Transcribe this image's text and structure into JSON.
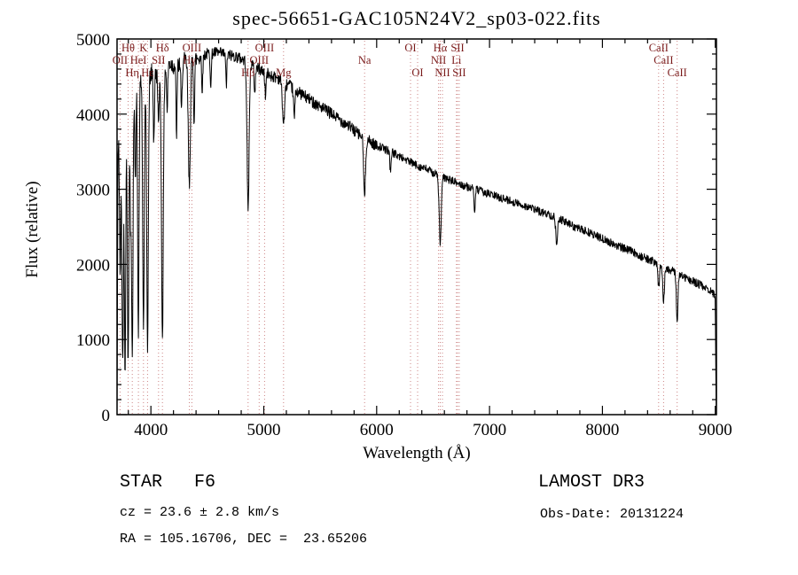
{
  "chart_data": {
    "type": "line",
    "title": "spec-56651-GAC105N24V2_sp03-022.fits",
    "xlabel": "Wavelength (Å)",
    "ylabel": "Flux (relative)",
    "xlim": [
      3700,
      9010
    ],
    "ylim": [
      0,
      5000
    ],
    "xticks": [
      4000,
      5000,
      6000,
      7000,
      8000,
      9000
    ],
    "yticks": [
      0,
      1000,
      2000,
      3000,
      4000,
      5000
    ],
    "grid": false,
    "legend": "none",
    "line_color": "#000000",
    "marker_line_color": "#cc8484",
    "marker_label_color": "#7a1a1a",
    "spectral_lines": [
      {
        "label": "OII",
        "wavelength": 3727,
        "row": 1
      },
      {
        "label": "Hθ",
        "wavelength": 3798,
        "row": 0
      },
      {
        "label": "Hη",
        "wavelength": 3835,
        "row": 2
      },
      {
        "label": "HeI",
        "wavelength": 3889,
        "row": 1
      },
      {
        "label": "K",
        "wavelength": 3934,
        "row": 0
      },
      {
        "label": "Hε",
        "wavelength": 3970,
        "row": 2
      },
      {
        "label": "SII",
        "wavelength": 4068,
        "row": 1
      },
      {
        "label": "Hδ",
        "wavelength": 4102,
        "row": 0
      },
      {
        "label": "Hγ",
        "wavelength": 4340,
        "row": 1
      },
      {
        "label": "OIII",
        "wavelength": 4363,
        "row": 0
      },
      {
        "label": "Hβ",
        "wavelength": 4861,
        "row": 2
      },
      {
        "label": "OIII",
        "wavelength": 4959,
        "row": 1
      },
      {
        "label": "OIII",
        "wavelength": 5007,
        "row": 0
      },
      {
        "label": "Mg",
        "wavelength": 5175,
        "row": 2
      },
      {
        "label": "Na",
        "wavelength": 5893,
        "row": 1
      },
      {
        "label": "OI",
        "wavelength": 6300,
        "row": 0
      },
      {
        "label": "OI",
        "wavelength": 6363,
        "row": 2
      },
      {
        "label": "NII",
        "wavelength": 6548,
        "row": 1
      },
      {
        "label": "Hα",
        "wavelength": 6563,
        "row": 0
      },
      {
        "label": "NII",
        "wavelength": 6583,
        "row": 2
      },
      {
        "label": "Li",
        "wavelength": 6707,
        "row": 1
      },
      {
        "label": "SII",
        "wavelength": 6716,
        "row": 0
      },
      {
        "label": "SII",
        "wavelength": 6731,
        "row": 2
      },
      {
        "label": "CaII",
        "wavelength": 8498,
        "row": 0
      },
      {
        "label": "CaII",
        "wavelength": 8542,
        "row": 1
      },
      {
        "label": "CaII",
        "wavelength": 8662,
        "row": 2
      }
    ],
    "continuum": [
      [
        3700,
        0
      ],
      [
        3703,
        1200
      ],
      [
        3707,
        3300
      ],
      [
        3714,
        3900
      ],
      [
        3725,
        3700
      ],
      [
        3745,
        3500
      ],
      [
        3765,
        3800
      ],
      [
        3790,
        3950
      ],
      [
        3820,
        4100
      ],
      [
        3860,
        4350
      ],
      [
        3910,
        4480
      ],
      [
        3960,
        4420
      ],
      [
        4010,
        4560
      ],
      [
        4060,
        4500
      ],
      [
        4110,
        4580
      ],
      [
        4160,
        4680
      ],
      [
        4220,
        4640
      ],
      [
        4280,
        4690
      ],
      [
        4340,
        4710
      ],
      [
        4400,
        4740
      ],
      [
        4470,
        4790
      ],
      [
        4550,
        4820
      ],
      [
        4650,
        4800
      ],
      [
        4750,
        4770
      ],
      [
        4850,
        4700
      ],
      [
        4950,
        4610
      ],
      [
        5050,
        4520
      ],
      [
        5150,
        4470
      ],
      [
        5250,
        4350
      ],
      [
        5350,
        4250
      ],
      [
        5450,
        4150
      ],
      [
        5550,
        4050
      ],
      [
        5650,
        3950
      ],
      [
        5750,
        3850
      ],
      [
        5850,
        3720
      ],
      [
        5950,
        3620
      ],
      [
        6050,
        3550
      ],
      [
        6150,
        3480
      ],
      [
        6250,
        3400
      ],
      [
        6350,
        3320
      ],
      [
        6450,
        3260
      ],
      [
        6550,
        3180
      ],
      [
        6650,
        3120
      ],
      [
        6750,
        3060
      ],
      [
        6850,
        3010
      ],
      [
        6950,
        2960
      ],
      [
        7050,
        2910
      ],
      [
        7150,
        2860
      ],
      [
        7250,
        2810
      ],
      [
        7350,
        2760
      ],
      [
        7450,
        2700
      ],
      [
        7550,
        2650
      ],
      [
        7650,
        2580
      ],
      [
        7750,
        2500
      ],
      [
        7850,
        2440
      ],
      [
        7950,
        2380
      ],
      [
        8050,
        2300
      ],
      [
        8150,
        2240
      ],
      [
        8250,
        2180
      ],
      [
        8350,
        2100
      ],
      [
        8450,
        2040
      ],
      [
        8550,
        1960
      ],
      [
        8650,
        1890
      ],
      [
        8750,
        1810
      ],
      [
        8850,
        1740
      ],
      [
        8950,
        1660
      ],
      [
        8998,
        1580
      ],
      [
        9003,
        900
      ],
      [
        9007,
        200
      ],
      [
        9010,
        20
      ]
    ],
    "absorption_lines": [
      [
        3727,
        1800,
        6
      ],
      [
        3750,
        2900,
        6
      ],
      [
        3771,
        3200,
        6
      ],
      [
        3798,
        3400,
        6
      ],
      [
        3820,
        1500,
        5
      ],
      [
        3835,
        3500,
        6
      ],
      [
        3862,
        1300,
        5
      ],
      [
        3889,
        3400,
        6
      ],
      [
        3934,
        3300,
        7
      ],
      [
        3970,
        3600,
        7
      ],
      [
        4026,
        900,
        5
      ],
      [
        4068,
        700,
        5
      ],
      [
        4102,
        3500,
        8
      ],
      [
        4144,
        600,
        5
      ],
      [
        4227,
        900,
        5
      ],
      [
        4271,
        700,
        5
      ],
      [
        4340,
        1650,
        9
      ],
      [
        4383,
        800,
        5
      ],
      [
        4455,
        450,
        5
      ],
      [
        4531,
        420,
        5
      ],
      [
        4668,
        400,
        5
      ],
      [
        4861,
        1950,
        9
      ],
      [
        4920,
        380,
        5
      ],
      [
        5015,
        320,
        5
      ],
      [
        5175,
        560,
        10
      ],
      [
        5270,
        380,
        6
      ],
      [
        5893,
        780,
        8
      ],
      [
        6122,
        260,
        5
      ],
      [
        6563,
        900,
        9
      ],
      [
        6867,
        280,
        6
      ],
      [
        7594,
        320,
        8
      ],
      [
        8498,
        300,
        7
      ],
      [
        8542,
        450,
        7
      ],
      [
        8662,
        640,
        7
      ]
    ],
    "noise": {
      "seed": 42,
      "segments": [
        [
          3800,
          190
        ],
        [
          4450,
          130
        ],
        [
          6000,
          80
        ],
        [
          9100,
          55
        ]
      ]
    }
  },
  "annotations": {
    "class_line": "STAR   F6",
    "survey": "LAMOST DR3",
    "cz": "cz = 23.6 ± 2.8 km/s",
    "obs_date": "Obs-Date: 20131224",
    "ra_dec": "RA = 105.16706, DEC =  23.65206"
  }
}
